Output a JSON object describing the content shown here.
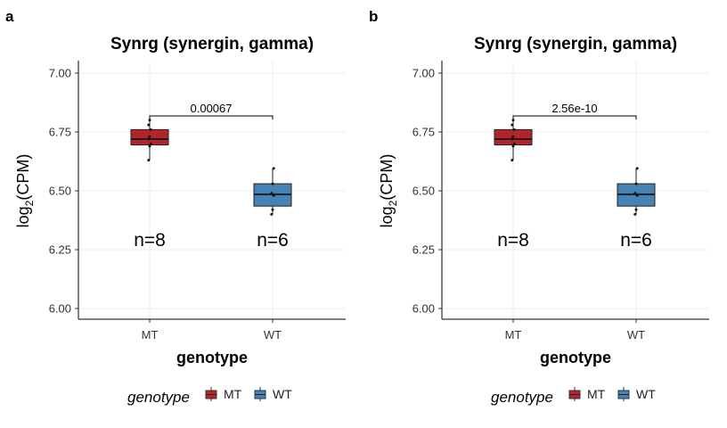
{
  "chart_data": [
    {
      "panel": "a",
      "type": "box",
      "title": "Synrg (synergin, gamma)",
      "xlabel": "genotype",
      "ylabel": "log2(CPM)",
      "ylim": [
        6.0,
        7.0
      ],
      "yticks": [
        "6.00",
        "6.25",
        "6.50",
        "6.75",
        "7.00"
      ],
      "categories": [
        "MT",
        "WT"
      ],
      "colors": [
        "#B2262B",
        "#4682B4"
      ],
      "boxes": [
        {
          "name": "MT",
          "min": 6.63,
          "q1": 6.695,
          "median": 6.72,
          "q3": 6.76,
          "max": 6.8,
          "points": [
            6.63,
            6.69,
            6.7,
            6.72,
            6.73,
            6.76,
            6.78,
            6.8
          ]
        },
        {
          "name": "WT",
          "min": 6.4,
          "q1": 6.435,
          "median": 6.485,
          "q3": 6.53,
          "max": 6.595,
          "points": [
            6.4,
            6.42,
            6.48,
            6.49,
            6.53,
            6.595
          ]
        }
      ],
      "n_labels": [
        "n=8",
        "n=6"
      ],
      "pvalue": "0.00067",
      "legend": {
        "title": "genotype",
        "items": [
          "MT",
          "WT"
        ]
      }
    },
    {
      "panel": "b",
      "type": "box",
      "title": "Synrg (synergin, gamma)",
      "xlabel": "genotype",
      "ylabel": "log2(CPM)",
      "ylim": [
        6.0,
        7.0
      ],
      "yticks": [
        "6.00",
        "6.25",
        "6.50",
        "6.75",
        "7.00"
      ],
      "categories": [
        "MT",
        "WT"
      ],
      "colors": [
        "#B2262B",
        "#4682B4"
      ],
      "boxes": [
        {
          "name": "MT",
          "min": 6.63,
          "q1": 6.695,
          "median": 6.72,
          "q3": 6.76,
          "max": 6.8,
          "points": [
            6.63,
            6.69,
            6.7,
            6.72,
            6.73,
            6.76,
            6.78,
            6.8
          ]
        },
        {
          "name": "WT",
          "min": 6.4,
          "q1": 6.435,
          "median": 6.485,
          "q3": 6.53,
          "max": 6.595,
          "points": [
            6.4,
            6.42,
            6.48,
            6.49,
            6.53,
            6.595
          ]
        }
      ],
      "n_labels": [
        "n=8",
        "n=6"
      ],
      "pvalue": "2.56e-10",
      "legend": {
        "title": "genotype",
        "items": [
          "MT",
          "WT"
        ]
      }
    }
  ]
}
